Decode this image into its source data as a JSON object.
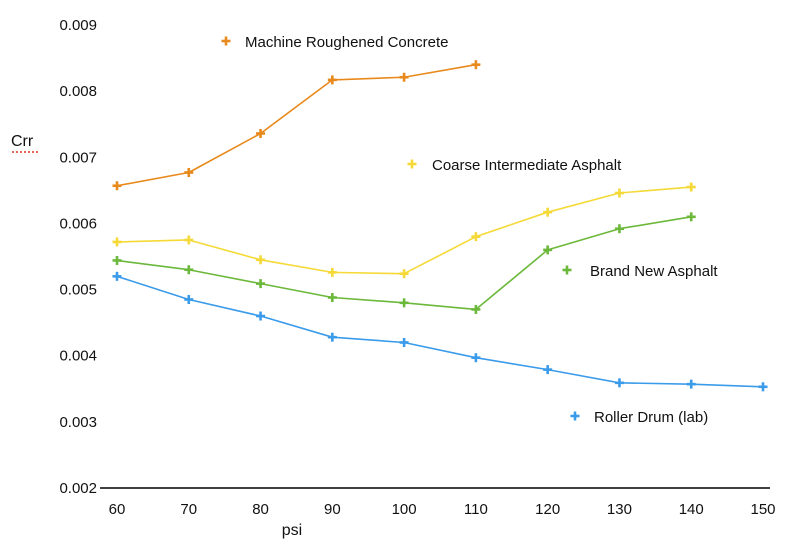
{
  "chart_data": {
    "type": "line",
    "title": "",
    "xlabel": "psi",
    "ylabel": "Crr",
    "x": [
      60,
      70,
      80,
      90,
      100,
      110,
      120,
      130,
      140,
      150
    ],
    "xlim": [
      60,
      150
    ],
    "ylim": [
      0.002,
      0.009
    ],
    "x_ticks": [
      "60",
      "70",
      "80",
      "90",
      "100",
      "110",
      "120",
      "130",
      "140",
      "150"
    ],
    "y_ticks": [
      "0.002",
      "0.003",
      "0.004",
      "0.005",
      "0.006",
      "0.007",
      "0.008",
      "0.009"
    ],
    "grid": false,
    "series": [
      {
        "name": "Machine Roughened Concrete",
        "color": "#E8891C",
        "x": [
          60,
          70,
          80,
          90,
          100,
          110
        ],
        "values": [
          0.00657,
          0.00677,
          0.00736,
          0.00817,
          0.00821,
          0.0084
        ]
      },
      {
        "name": "Coarse Intermediate Asphalt",
        "color": "#F5D936",
        "x": [
          60,
          70,
          80,
          90,
          100,
          110,
          120,
          130,
          140
        ],
        "values": [
          0.00572,
          0.00575,
          0.00545,
          0.00526,
          0.00524,
          0.0058,
          0.00617,
          0.00646,
          0.00655
        ]
      },
      {
        "name": "Brand New Asphalt",
        "color": "#6BB83A",
        "x": [
          60,
          70,
          80,
          90,
          100,
          110,
          120,
          130,
          140
        ],
        "values": [
          0.00544,
          0.0053,
          0.00509,
          0.00488,
          0.0048,
          0.0047,
          0.0056,
          0.00592,
          0.0061
        ]
      },
      {
        "name": "Roller Drum (lab)",
        "color": "#3A9BEA",
        "x": [
          60,
          70,
          80,
          90,
          100,
          110,
          120,
          130,
          140,
          150
        ],
        "values": [
          0.0052,
          0.00485,
          0.0046,
          0.00428,
          0.0042,
          0.00397,
          0.00379,
          0.00359,
          0.00357,
          0.00353
        ]
      }
    ]
  }
}
